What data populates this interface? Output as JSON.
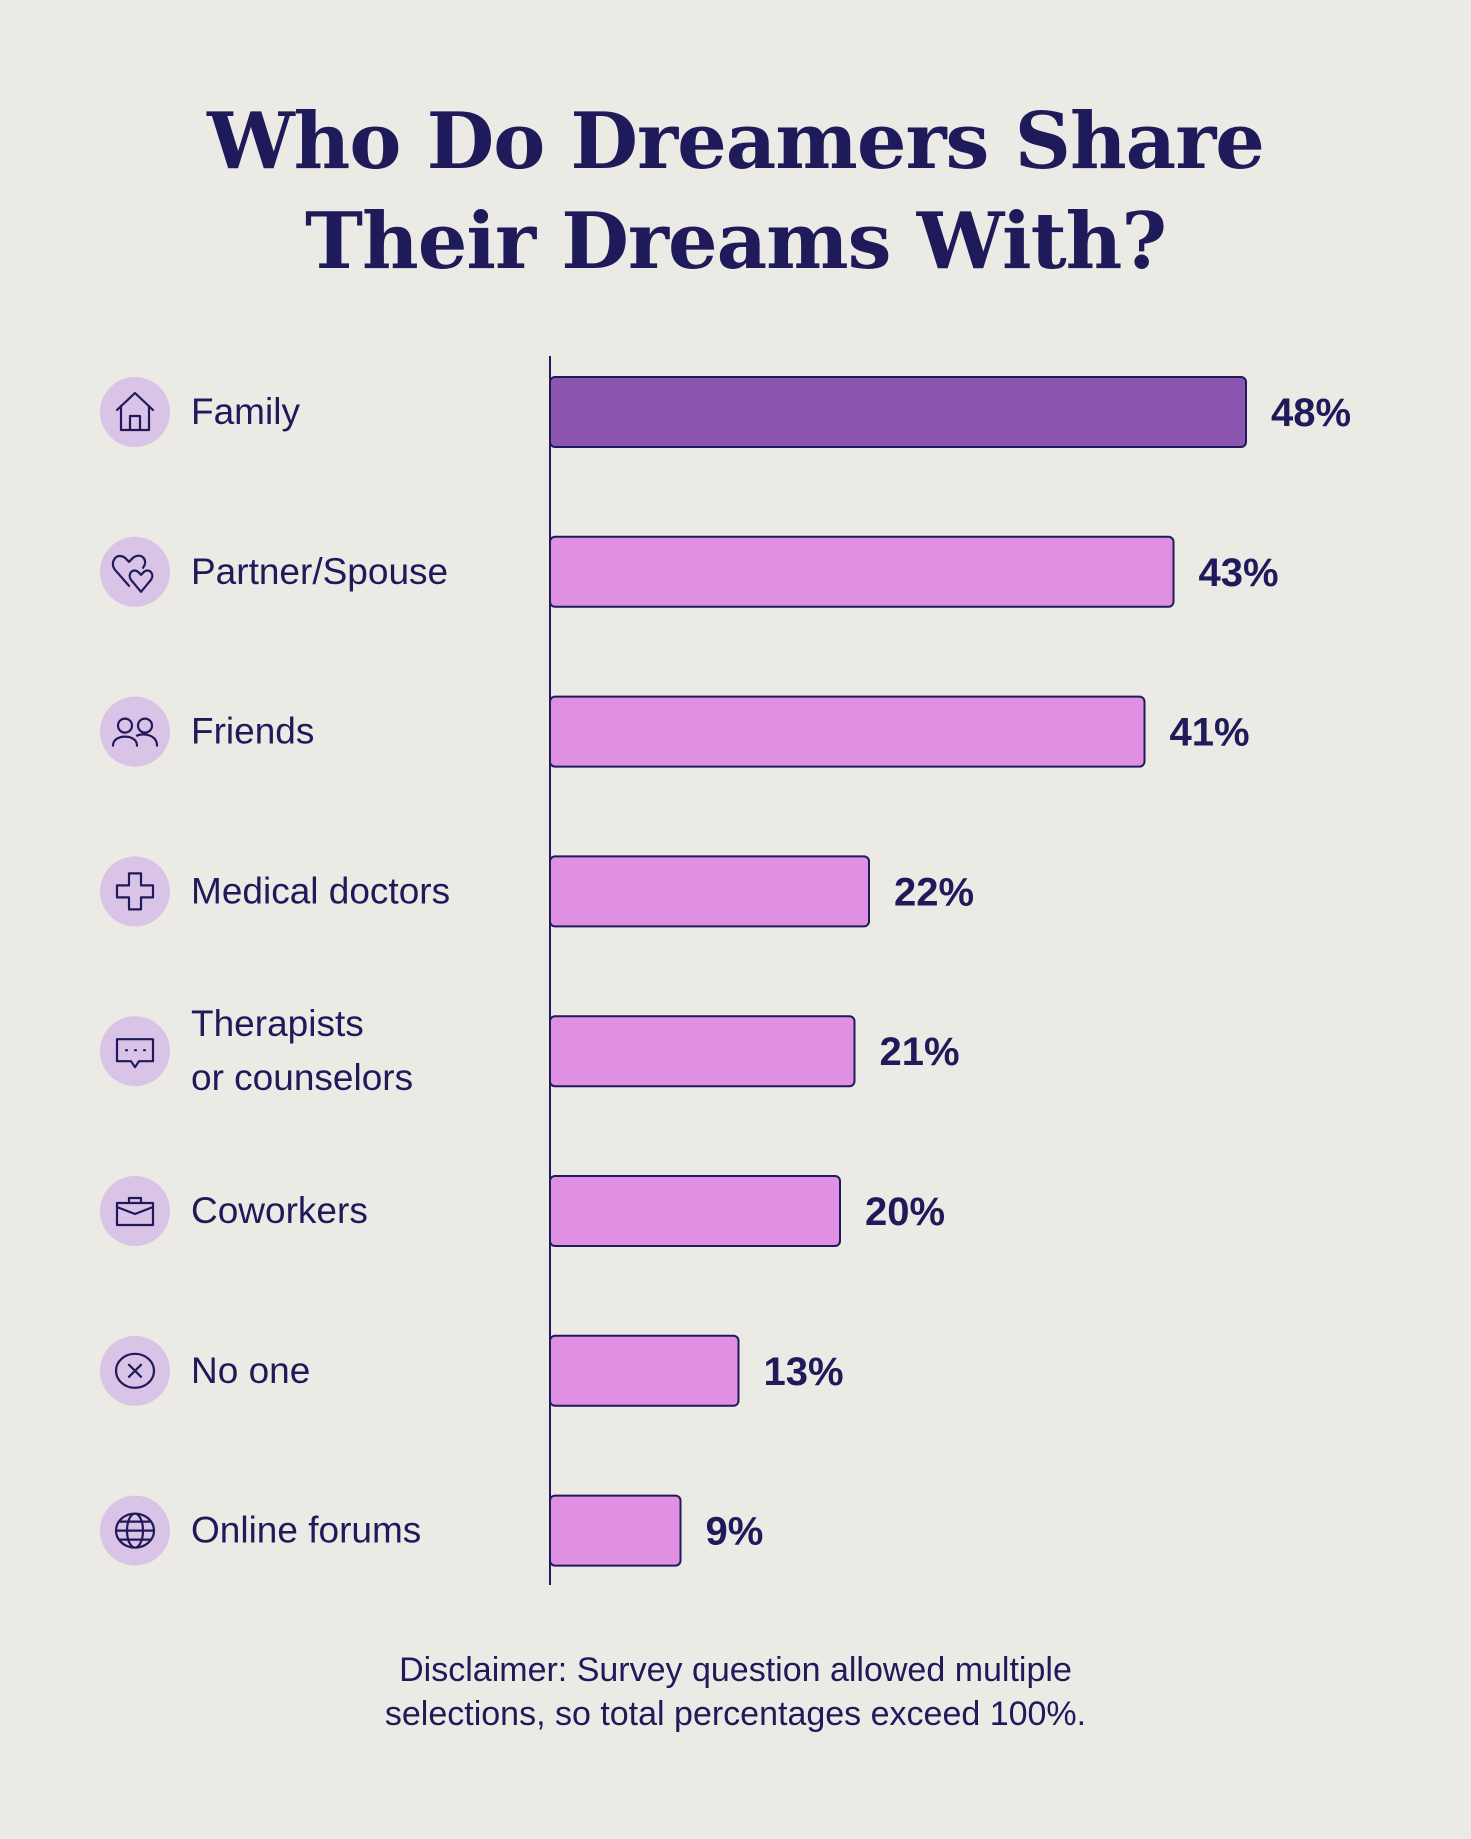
{
  "chart_data": {
    "type": "bar",
    "orientation": "horizontal",
    "title": [
      "Who Do Dreamers Share",
      "Their Dreams With?"
    ],
    "categories": [
      {
        "label": [
          "Family"
        ],
        "icon": "house-icon"
      },
      {
        "label": [
          "Partner/Spouse"
        ],
        "icon": "hearts-icon"
      },
      {
        "label": [
          "Friends"
        ],
        "icon": "people-icon"
      },
      {
        "label": [
          "Medical doctors"
        ],
        "icon": "medical-cross-icon"
      },
      {
        "label": [
          "Therapists",
          "or counselors"
        ],
        "icon": "chat-bubble-icon"
      },
      {
        "label": [
          "Coworkers"
        ],
        "icon": "briefcase-icon"
      },
      {
        "label": [
          "No one"
        ],
        "icon": "x-circle-icon"
      },
      {
        "label": [
          "Online forums"
        ],
        "icon": "globe-icon"
      }
    ],
    "values": [
      48,
      43,
      41,
      22,
      21,
      20,
      13,
      9
    ],
    "value_labels": [
      "48%",
      "43%",
      "41%",
      "22%",
      "21%",
      "20%",
      "13%",
      "9%"
    ],
    "unit": "%",
    "highlight_index": 0,
    "xlim": [
      0,
      50
    ],
    "grid": false,
    "colors": {
      "highlight": "#8B55B0",
      "bar": "#E090E3",
      "outline": "#1F1A5A",
      "icon_bg": "#D9C3E6",
      "text": "#1F1A5A",
      "background": "#ECEAE5"
    }
  },
  "disclaimer": [
    "Disclaimer: Survey question allowed multiple",
    "selections, so total percentages exceed 100%."
  ]
}
